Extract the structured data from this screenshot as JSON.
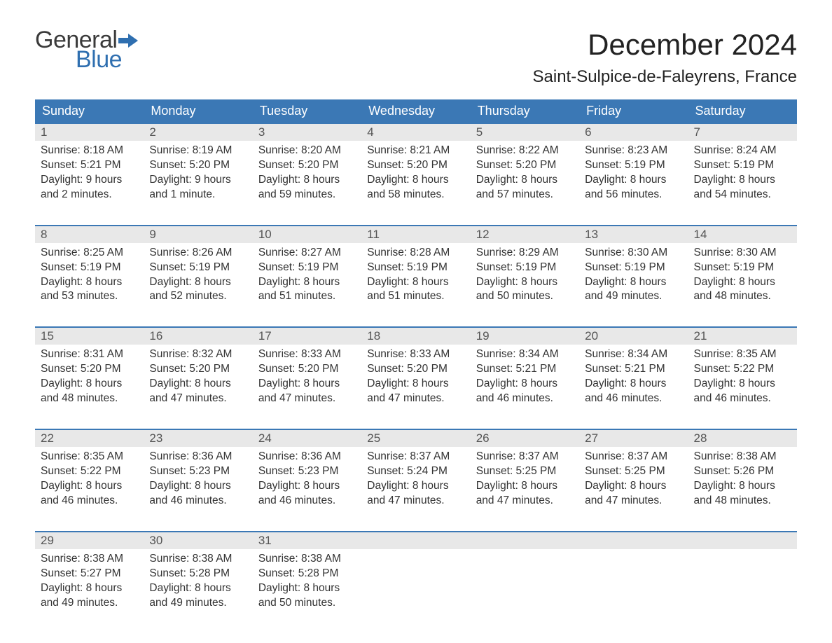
{
  "colors": {
    "header_bg": "#3b78b5",
    "header_text": "#ffffff",
    "daynum_bg": "#e8e8e8",
    "body_text": "#333333",
    "week_border": "#3b78b5",
    "logo_blue": "#2f6fb0",
    "logo_gray": "#3a3a3a"
  },
  "logo": {
    "word1": "General",
    "word2": "Blue"
  },
  "title": "December 2024",
  "location": "Saint-Sulpice-de-Faleyrens, France",
  "dow": [
    "Sunday",
    "Monday",
    "Tuesday",
    "Wednesday",
    "Thursday",
    "Friday",
    "Saturday"
  ],
  "weeks": [
    [
      {
        "n": "1",
        "sr": "Sunrise: 8:18 AM",
        "ss": "Sunset: 5:21 PM",
        "d1": "Daylight: 9 hours",
        "d2": "and 2 minutes."
      },
      {
        "n": "2",
        "sr": "Sunrise: 8:19 AM",
        "ss": "Sunset: 5:20 PM",
        "d1": "Daylight: 9 hours",
        "d2": "and 1 minute."
      },
      {
        "n": "3",
        "sr": "Sunrise: 8:20 AM",
        "ss": "Sunset: 5:20 PM",
        "d1": "Daylight: 8 hours",
        "d2": "and 59 minutes."
      },
      {
        "n": "4",
        "sr": "Sunrise: 8:21 AM",
        "ss": "Sunset: 5:20 PM",
        "d1": "Daylight: 8 hours",
        "d2": "and 58 minutes."
      },
      {
        "n": "5",
        "sr": "Sunrise: 8:22 AM",
        "ss": "Sunset: 5:20 PM",
        "d1": "Daylight: 8 hours",
        "d2": "and 57 minutes."
      },
      {
        "n": "6",
        "sr": "Sunrise: 8:23 AM",
        "ss": "Sunset: 5:19 PM",
        "d1": "Daylight: 8 hours",
        "d2": "and 56 minutes."
      },
      {
        "n": "7",
        "sr": "Sunrise: 8:24 AM",
        "ss": "Sunset: 5:19 PM",
        "d1": "Daylight: 8 hours",
        "d2": "and 54 minutes."
      }
    ],
    [
      {
        "n": "8",
        "sr": "Sunrise: 8:25 AM",
        "ss": "Sunset: 5:19 PM",
        "d1": "Daylight: 8 hours",
        "d2": "and 53 minutes."
      },
      {
        "n": "9",
        "sr": "Sunrise: 8:26 AM",
        "ss": "Sunset: 5:19 PM",
        "d1": "Daylight: 8 hours",
        "d2": "and 52 minutes."
      },
      {
        "n": "10",
        "sr": "Sunrise: 8:27 AM",
        "ss": "Sunset: 5:19 PM",
        "d1": "Daylight: 8 hours",
        "d2": "and 51 minutes."
      },
      {
        "n": "11",
        "sr": "Sunrise: 8:28 AM",
        "ss": "Sunset: 5:19 PM",
        "d1": "Daylight: 8 hours",
        "d2": "and 51 minutes."
      },
      {
        "n": "12",
        "sr": "Sunrise: 8:29 AM",
        "ss": "Sunset: 5:19 PM",
        "d1": "Daylight: 8 hours",
        "d2": "and 50 minutes."
      },
      {
        "n": "13",
        "sr": "Sunrise: 8:30 AM",
        "ss": "Sunset: 5:19 PM",
        "d1": "Daylight: 8 hours",
        "d2": "and 49 minutes."
      },
      {
        "n": "14",
        "sr": "Sunrise: 8:30 AM",
        "ss": "Sunset: 5:19 PM",
        "d1": "Daylight: 8 hours",
        "d2": "and 48 minutes."
      }
    ],
    [
      {
        "n": "15",
        "sr": "Sunrise: 8:31 AM",
        "ss": "Sunset: 5:20 PM",
        "d1": "Daylight: 8 hours",
        "d2": "and 48 minutes."
      },
      {
        "n": "16",
        "sr": "Sunrise: 8:32 AM",
        "ss": "Sunset: 5:20 PM",
        "d1": "Daylight: 8 hours",
        "d2": "and 47 minutes."
      },
      {
        "n": "17",
        "sr": "Sunrise: 8:33 AM",
        "ss": "Sunset: 5:20 PM",
        "d1": "Daylight: 8 hours",
        "d2": "and 47 minutes."
      },
      {
        "n": "18",
        "sr": "Sunrise: 8:33 AM",
        "ss": "Sunset: 5:20 PM",
        "d1": "Daylight: 8 hours",
        "d2": "and 47 minutes."
      },
      {
        "n": "19",
        "sr": "Sunrise: 8:34 AM",
        "ss": "Sunset: 5:21 PM",
        "d1": "Daylight: 8 hours",
        "d2": "and 46 minutes."
      },
      {
        "n": "20",
        "sr": "Sunrise: 8:34 AM",
        "ss": "Sunset: 5:21 PM",
        "d1": "Daylight: 8 hours",
        "d2": "and 46 minutes."
      },
      {
        "n": "21",
        "sr": "Sunrise: 8:35 AM",
        "ss": "Sunset: 5:22 PM",
        "d1": "Daylight: 8 hours",
        "d2": "and 46 minutes."
      }
    ],
    [
      {
        "n": "22",
        "sr": "Sunrise: 8:35 AM",
        "ss": "Sunset: 5:22 PM",
        "d1": "Daylight: 8 hours",
        "d2": "and 46 minutes."
      },
      {
        "n": "23",
        "sr": "Sunrise: 8:36 AM",
        "ss": "Sunset: 5:23 PM",
        "d1": "Daylight: 8 hours",
        "d2": "and 46 minutes."
      },
      {
        "n": "24",
        "sr": "Sunrise: 8:36 AM",
        "ss": "Sunset: 5:23 PM",
        "d1": "Daylight: 8 hours",
        "d2": "and 46 minutes."
      },
      {
        "n": "25",
        "sr": "Sunrise: 8:37 AM",
        "ss": "Sunset: 5:24 PM",
        "d1": "Daylight: 8 hours",
        "d2": "and 47 minutes."
      },
      {
        "n": "26",
        "sr": "Sunrise: 8:37 AM",
        "ss": "Sunset: 5:25 PM",
        "d1": "Daylight: 8 hours",
        "d2": "and 47 minutes."
      },
      {
        "n": "27",
        "sr": "Sunrise: 8:37 AM",
        "ss": "Sunset: 5:25 PM",
        "d1": "Daylight: 8 hours",
        "d2": "and 47 minutes."
      },
      {
        "n": "28",
        "sr": "Sunrise: 8:38 AM",
        "ss": "Sunset: 5:26 PM",
        "d1": "Daylight: 8 hours",
        "d2": "and 48 minutes."
      }
    ],
    [
      {
        "n": "29",
        "sr": "Sunrise: 8:38 AM",
        "ss": "Sunset: 5:27 PM",
        "d1": "Daylight: 8 hours",
        "d2": "and 49 minutes."
      },
      {
        "n": "30",
        "sr": "Sunrise: 8:38 AM",
        "ss": "Sunset: 5:28 PM",
        "d1": "Daylight: 8 hours",
        "d2": "and 49 minutes."
      },
      {
        "n": "31",
        "sr": "Sunrise: 8:38 AM",
        "ss": "Sunset: 5:28 PM",
        "d1": "Daylight: 8 hours",
        "d2": "and 50 minutes."
      },
      {
        "empty": true
      },
      {
        "empty": true
      },
      {
        "empty": true
      },
      {
        "empty": true
      }
    ]
  ]
}
